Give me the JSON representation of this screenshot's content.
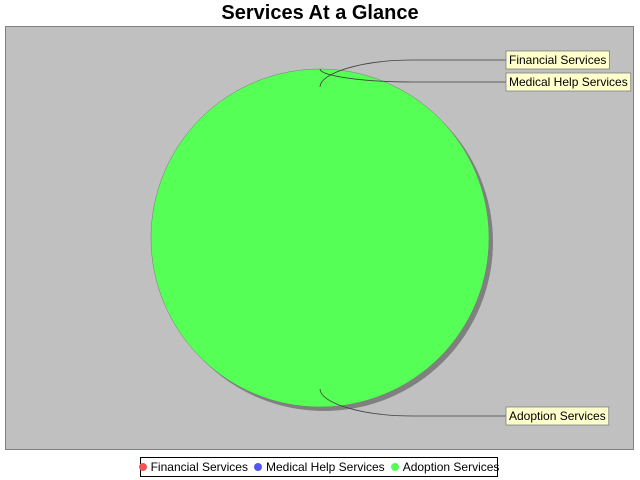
{
  "chart_data": {
    "type": "pie",
    "title": "Services At a Glance",
    "categories": [
      "Financial Services",
      "Medical Help Services",
      "Adoption Services"
    ],
    "values": [
      0,
      0,
      100
    ],
    "colors": [
      "#f25555",
      "#5555f2",
      "#55ff55"
    ],
    "legend_position": "bottom",
    "plot_background": "#c0c0c0"
  }
}
